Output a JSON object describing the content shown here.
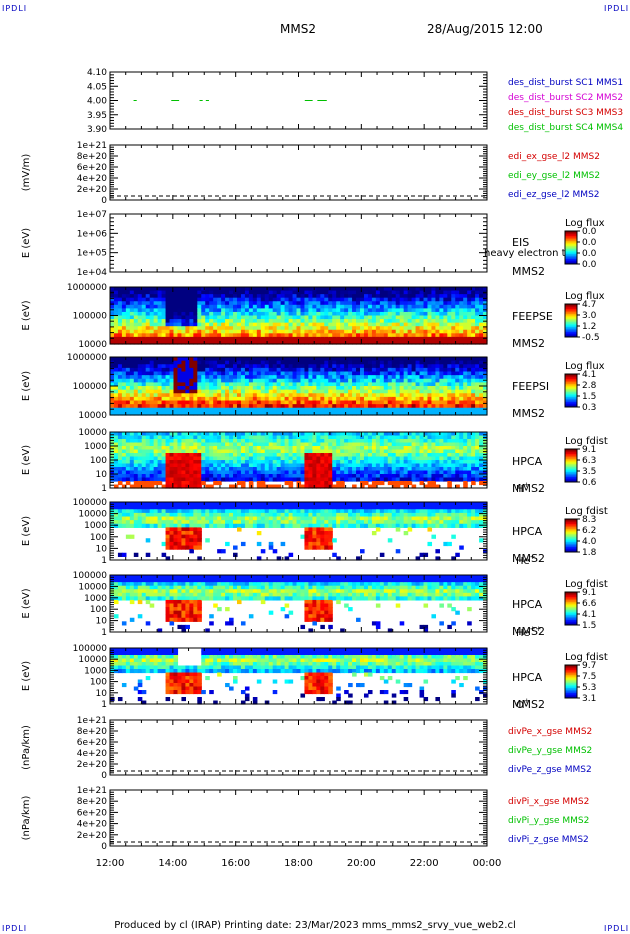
{
  "header": {
    "corner_label": "IPDLI",
    "spacecraft": "MMS2",
    "datetime": "28/Aug/2015 12:00"
  },
  "footer": {
    "text": "Produced by cl (IRAP)   Printing date: 23/Mar/2023   mms_mms2_srvy_vue_web2.cl"
  },
  "colors": {
    "red": "#d40000",
    "magenta": "#d400d4",
    "green": "#00c000",
    "blue": "#0000c0"
  },
  "chart_data": [
    {
      "type": "line",
      "ylim": [
        3.9,
        4.1
      ],
      "yticks": [
        "4.10",
        "4.05",
        "4.00",
        "3.95",
        "3.90"
      ],
      "series": [
        {
          "name": "des_dist_burst SC1 MMS1",
          "color": "blue",
          "values": []
        },
        {
          "name": "des_dist_burst SC2 MMS2",
          "color": "magenta",
          "values": []
        },
        {
          "name": "des_dist_burst SC3 MMS3",
          "color": "red",
          "values": []
        },
        {
          "name": "des_dist_burst SC4 MMS4",
          "color": "green",
          "segments": [
            [
              12.75,
              12.85
            ],
            [
              13.95,
              14.2
            ],
            [
              14.85,
              14.95
            ],
            [
              15.05,
              15.15
            ],
            [
              18.2,
              18.45
            ],
            [
              18.6,
              18.9
            ]
          ],
          "y": 4.0
        }
      ]
    },
    {
      "type": "line",
      "ylabel": "(mV/m)",
      "yticks": [
        "1e+21",
        "8e+20",
        "6e+20",
        "4e+20",
        "2e+20",
        "0"
      ],
      "series": [
        {
          "name": "edi_ex_gse_l2 MMS2",
          "color": "red"
        },
        {
          "name": "edi_ey_gse_l2 MMS2",
          "color": "green"
        },
        {
          "name": "edi_ez_gse_l2 MMS2",
          "color": "blue"
        }
      ]
    },
    {
      "type": "heatmap",
      "ylabel": "E (eV)",
      "yticks": [
        "1e+07",
        "1e+06",
        "1e+05",
        "1e+04"
      ],
      "instrument": "EIS",
      "note": "heavy electron to",
      "spacecraft": "MMS2",
      "colorbar_title": "Log flux",
      "colorbar_ticks": [
        "0.0",
        "0.0",
        "0.0",
        "0.0"
      ]
    },
    {
      "type": "heatmap",
      "ylabel": "E (eV)",
      "yticks": [
        "1000000",
        "100000",
        "10000"
      ],
      "instrument": "FEEPSE",
      "spacecraft": "MMS2",
      "colorbar_title": "Log flux",
      "colorbar_ticks": [
        "4.7",
        "3.0",
        "1.2",
        "-0.5"
      ]
    },
    {
      "type": "heatmap",
      "ylabel": "E (eV)",
      "yticks": [
        "1000000",
        "100000",
        "10000"
      ],
      "instrument": "FEEPSI",
      "spacecraft": "MMS2",
      "colorbar_title": "Log flux",
      "colorbar_ticks": [
        "4.1",
        "2.8",
        "1.5",
        "0.3"
      ]
    },
    {
      "type": "heatmap",
      "ylabel": "E (eV)",
      "yticks": [
        "10000",
        "1000",
        "100",
        "10",
        "1"
      ],
      "instrument": "HPCA",
      "spacecraft": "MMS2",
      "species": "H",
      "species_sup": "+",
      "colorbar_title": "Log fdist",
      "colorbar_ticks": [
        "9.1",
        "6.3",
        "3.5",
        "0.6"
      ]
    },
    {
      "type": "heatmap",
      "ylabel": "E (eV)",
      "yticks": [
        "100000",
        "10000",
        "1000",
        "100",
        "10",
        "1"
      ],
      "instrument": "HPCA",
      "spacecraft": "MMS2",
      "species": "He",
      "species_sup": "+",
      "colorbar_title": "Log fdist",
      "colorbar_ticks": [
        "8.3",
        "6.2",
        "4.0",
        "1.8"
      ]
    },
    {
      "type": "heatmap",
      "ylabel": "E (eV)",
      "yticks": [
        "100000",
        "10000",
        "1000",
        "100",
        "10",
        "1"
      ],
      "instrument": "HPCA",
      "spacecraft": "MMS2",
      "species": "He",
      "species_sup": "++",
      "colorbar_title": "Log fdist",
      "colorbar_ticks": [
        "9.1",
        "6.6",
        "4.1",
        "1.5"
      ]
    },
    {
      "type": "heatmap",
      "ylabel": "E (eV)",
      "yticks": [
        "100000",
        "10000",
        "1000",
        "100",
        "10",
        "1"
      ],
      "instrument": "HPCA",
      "spacecraft": "MMS2",
      "species": "O",
      "species_sup": "+",
      "colorbar_title": "Log fdist",
      "colorbar_ticks": [
        "9.7",
        "7.5",
        "5.3",
        "3.1"
      ]
    },
    {
      "type": "line",
      "ylabel": "(nPa/km)",
      "yticks": [
        "1e+21",
        "8e+20",
        "6e+20",
        "4e+20",
        "2e+20",
        "0"
      ],
      "series": [
        {
          "name": "divPe_x_gse MMS2",
          "color": "red"
        },
        {
          "name": "divPe_y_gse MMS2",
          "color": "green"
        },
        {
          "name": "divPe_z_gse MMS2",
          "color": "blue"
        }
      ]
    },
    {
      "type": "line",
      "ylabel": "(nPa/km)",
      "yticks": [
        "1e+21",
        "8e+20",
        "6e+20",
        "4e+20",
        "2e+20",
        "0"
      ],
      "series": [
        {
          "name": "divPi_x_gse MMS2",
          "color": "red"
        },
        {
          "name": "divPi_y_gse MMS2",
          "color": "green"
        },
        {
          "name": "divPi_z_gse MMS2",
          "color": "blue"
        }
      ]
    }
  ],
  "x_axis": {
    "range": [
      12,
      24
    ],
    "ticks": [
      "12:00",
      "14:00",
      "16:00",
      "18:00",
      "20:00",
      "22:00",
      "00:00"
    ]
  }
}
